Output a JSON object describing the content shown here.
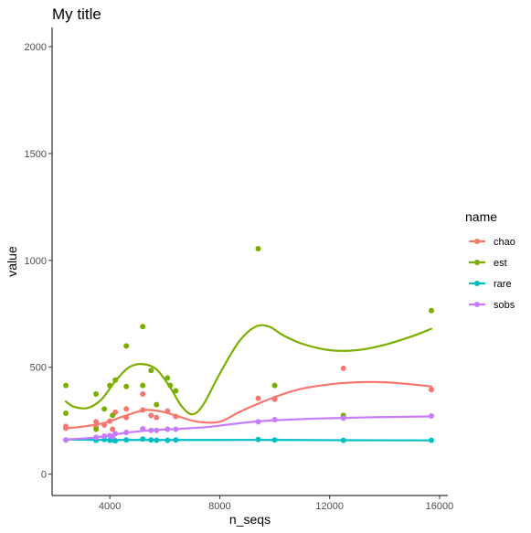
{
  "chart_data": {
    "type": "scatter",
    "title": "My title",
    "xlabel": "n_seqs",
    "ylabel": "value",
    "xlim": [
      1900,
      16300
    ],
    "ylim": [
      -100,
      2090
    ],
    "xticks": [
      4000,
      8000,
      12000,
      16000
    ],
    "yticks": [
      0,
      500,
      1000,
      1500,
      2000
    ],
    "xtick_labels": [
      "4000",
      "8000",
      "12000",
      "16000"
    ],
    "ytick_labels": [
      "0",
      "500",
      "1000",
      "1500",
      "2000"
    ],
    "grid": false,
    "legend": {
      "title": "name",
      "position": "right"
    },
    "series": [
      {
        "name": "chao",
        "color": "#F8766D",
        "points": [
          [
            2400,
            215
          ],
          [
            2400,
            223
          ],
          [
            3500,
            245
          ],
          [
            3500,
            220
          ],
          [
            3800,
            230
          ],
          [
            4000,
            248
          ],
          [
            4100,
            210
          ],
          [
            4200,
            290
          ],
          [
            4600,
            305
          ],
          [
            4600,
            265
          ],
          [
            5200,
            375
          ],
          [
            5200,
            300
          ],
          [
            5500,
            275
          ],
          [
            5700,
            265
          ],
          [
            6100,
            295
          ],
          [
            6400,
            270
          ],
          [
            9400,
            355
          ],
          [
            10000,
            350
          ],
          [
            12500,
            495
          ],
          [
            15700,
            395
          ]
        ],
        "smooth": [
          [
            2400,
            215
          ],
          [
            3000,
            222
          ],
          [
            3800,
            240
          ],
          [
            4600,
            275
          ],
          [
            5300,
            300
          ],
          [
            5900,
            292
          ],
          [
            6500,
            270
          ],
          [
            7200,
            245
          ],
          [
            8000,
            245
          ],
          [
            8700,
            290
          ],
          [
            9400,
            330
          ],
          [
            10200,
            370
          ],
          [
            11000,
            400
          ],
          [
            12000,
            420
          ],
          [
            13000,
            430
          ],
          [
            14000,
            430
          ],
          [
            15000,
            420
          ],
          [
            15700,
            410
          ]
        ]
      },
      {
        "name": "est",
        "color": "#7CAE00",
        "points": [
          [
            2400,
            415
          ],
          [
            2400,
            285
          ],
          [
            3500,
            375
          ],
          [
            3500,
            210
          ],
          [
            3800,
            305
          ],
          [
            4000,
            415
          ],
          [
            4100,
            275
          ],
          [
            4200,
            440
          ],
          [
            4600,
            600
          ],
          [
            4600,
            410
          ],
          [
            5200,
            690
          ],
          [
            5200,
            415
          ],
          [
            5500,
            485
          ],
          [
            5700,
            325
          ],
          [
            6100,
            450
          ],
          [
            6200,
            415
          ],
          [
            6400,
            390
          ],
          [
            9400,
            1055
          ],
          [
            10000,
            415
          ],
          [
            12500,
            275
          ],
          [
            15700,
            765
          ]
        ],
        "smooth": [
          [
            2400,
            340
          ],
          [
            2700,
            315
          ],
          [
            3200,
            310
          ],
          [
            3700,
            350
          ],
          [
            4200,
            435
          ],
          [
            4700,
            500
          ],
          [
            5200,
            515
          ],
          [
            5700,
            490
          ],
          [
            6200,
            405
          ],
          [
            6600,
            320
          ],
          [
            7000,
            280
          ],
          [
            7400,
            325
          ],
          [
            8000,
            470
          ],
          [
            8700,
            620
          ],
          [
            9300,
            690
          ],
          [
            9800,
            690
          ],
          [
            10300,
            650
          ],
          [
            11000,
            610
          ],
          [
            12000,
            580
          ],
          [
            13000,
            580
          ],
          [
            14000,
            605
          ],
          [
            15000,
            645
          ],
          [
            15700,
            680
          ]
        ]
      },
      {
        "name": "rare",
        "color": "#00BFC4",
        "points": [
          [
            2400,
            160
          ],
          [
            3500,
            158
          ],
          [
            3800,
            162
          ],
          [
            4000,
            158
          ],
          [
            4100,
            160
          ],
          [
            4200,
            156
          ],
          [
            4600,
            160
          ],
          [
            5200,
            164
          ],
          [
            5500,
            160
          ],
          [
            5700,
            158
          ],
          [
            6100,
            158
          ],
          [
            6400,
            160
          ],
          [
            9400,
            162
          ],
          [
            10000,
            160
          ],
          [
            12500,
            158
          ],
          [
            15700,
            158
          ]
        ],
        "smooth": [
          [
            2400,
            162
          ],
          [
            4000,
            160
          ],
          [
            6000,
            160
          ],
          [
            8000,
            160
          ],
          [
            10000,
            160
          ],
          [
            12000,
            159
          ],
          [
            15700,
            158
          ]
        ]
      },
      {
        "name": "sobs",
        "color": "#C77CFF",
        "points": [
          [
            2400,
            160
          ],
          [
            3500,
            172
          ],
          [
            3800,
            178
          ],
          [
            4000,
            180
          ],
          [
            4100,
            175
          ],
          [
            4200,
            190
          ],
          [
            4600,
            195
          ],
          [
            5200,
            212
          ],
          [
            5500,
            205
          ],
          [
            5700,
            205
          ],
          [
            6100,
            210
          ],
          [
            6400,
            210
          ],
          [
            9400,
            245
          ],
          [
            10000,
            255
          ],
          [
            12500,
            262
          ],
          [
            15700,
            272
          ]
        ],
        "smooth": [
          [
            2400,
            162
          ],
          [
            3500,
            172
          ],
          [
            4500,
            192
          ],
          [
            5500,
            205
          ],
          [
            6500,
            212
          ],
          [
            7500,
            220
          ],
          [
            8500,
            235
          ],
          [
            9500,
            248
          ],
          [
            10500,
            255
          ],
          [
            11500,
            260
          ],
          [
            12500,
            263
          ],
          [
            13500,
            266
          ],
          [
            14500,
            268
          ],
          [
            15700,
            270
          ]
        ]
      }
    ]
  }
}
